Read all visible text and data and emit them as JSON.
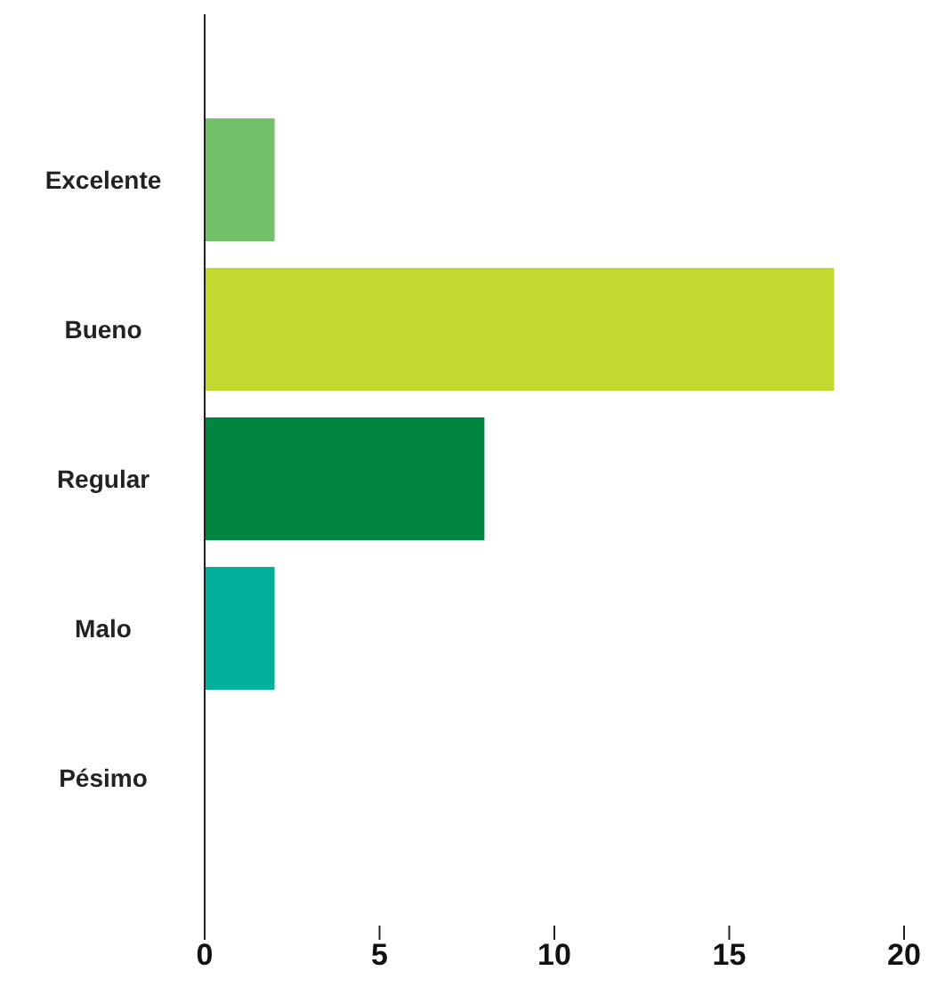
{
  "chart_data": {
    "type": "bar",
    "orientation": "horizontal",
    "categories": [
      "Excelente",
      "Bueno",
      "Regular",
      "Malo",
      "Pésimo"
    ],
    "values": [
      2,
      18,
      8,
      2,
      0
    ],
    "colors": [
      "#72c16a",
      "#c2d82e",
      "#008540",
      "#00b09a",
      "#00a99d"
    ],
    "xlim": [
      0,
      20
    ],
    "xticks": [
      0,
      5,
      10,
      15,
      20
    ],
    "grid": false,
    "legend": false
  }
}
